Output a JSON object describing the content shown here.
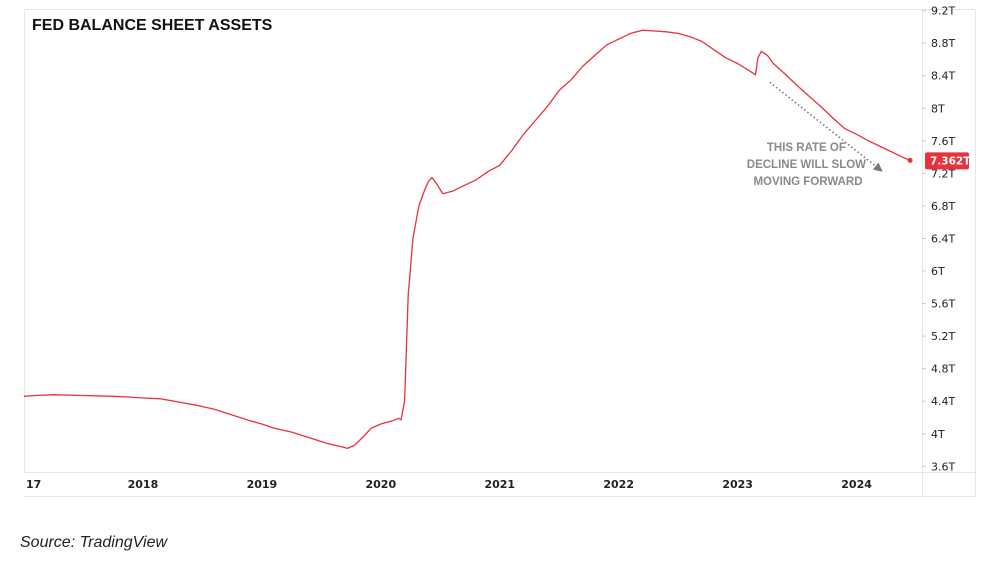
{
  "chart_data": {
    "type": "line",
    "title": "FED BALANCE SHEET ASSETS",
    "y_axis_position": "right",
    "y_ticks": [
      "9.2T",
      "8.8T",
      "8.4T",
      "8T",
      "7.6T",
      "7.2T",
      "6.8T",
      "6.4T",
      "6T",
      "5.6T",
      "5.2T",
      "4.8T",
      "4.4T",
      "4T",
      "3.6T"
    ],
    "y_tick_values": [
      9.2,
      8.8,
      8.4,
      8.0,
      7.6,
      7.2,
      6.8,
      6.4,
      6.0,
      5.6,
      5.2,
      4.8,
      4.4,
      4.0,
      3.6
    ],
    "x_ticks": [
      "17",
      "2018",
      "2019",
      "2020",
      "2021",
      "2022",
      "2023",
      "2024"
    ],
    "x_tick_values": [
      2017.0,
      2018.0,
      2019.0,
      2020.0,
      2021.0,
      2022.0,
      2023.0,
      2024.0
    ],
    "xlim": [
      2017.0,
      2024.55
    ],
    "ylim": [
      3.53,
      9.22
    ],
    "grid": false,
    "unit": "T",
    "series": [
      {
        "color": "#e8323c",
        "x": [
          2017.0,
          2017.1,
          2017.25,
          2017.5,
          2017.75,
          2017.9,
          2018.0,
          2018.15,
          2018.3,
          2018.45,
          2018.6,
          2018.75,
          2018.9,
          2019.0,
          2019.1,
          2019.25,
          2019.4,
          2019.55,
          2019.67,
          2019.72,
          2019.78,
          2019.85,
          2019.92,
          2020.0,
          2020.1,
          2020.15,
          2020.17,
          2020.2,
          2020.23,
          2020.27,
          2020.32,
          2020.37,
          2020.4,
          2020.43,
          2020.47,
          2020.52,
          2020.6,
          2020.7,
          2020.8,
          2020.9,
          2021.0,
          2021.1,
          2021.2,
          2021.3,
          2021.4,
          2021.5,
          2021.6,
          2021.7,
          2021.8,
          2021.9,
          2022.0,
          2022.1,
          2022.2,
          2022.3,
          2022.4,
          2022.5,
          2022.6,
          2022.7,
          2022.8,
          2022.9,
          2023.0,
          2023.1,
          2023.15,
          2023.17,
          2023.2,
          2023.25,
          2023.3,
          2023.4,
          2023.5,
          2023.6,
          2023.7,
          2023.8,
          2023.9,
          2024.0,
          2024.1,
          2024.2,
          2024.3,
          2024.4,
          2024.45
        ],
        "y": [
          4.46,
          4.47,
          4.48,
          4.47,
          4.46,
          4.45,
          4.44,
          4.43,
          4.39,
          4.35,
          4.3,
          4.23,
          4.16,
          4.12,
          4.07,
          4.02,
          3.95,
          3.88,
          3.84,
          3.82,
          3.86,
          3.96,
          4.07,
          4.12,
          4.16,
          4.19,
          4.17,
          4.4,
          5.7,
          6.4,
          6.8,
          7.0,
          7.1,
          7.15,
          7.07,
          6.95,
          6.98,
          7.05,
          7.12,
          7.22,
          7.3,
          7.48,
          7.68,
          7.85,
          8.02,
          8.22,
          8.35,
          8.52,
          8.65,
          8.78,
          8.85,
          8.92,
          8.96,
          8.95,
          8.94,
          8.92,
          8.88,
          8.82,
          8.72,
          8.62,
          8.55,
          8.46,
          8.41,
          8.62,
          8.7,
          8.65,
          8.55,
          8.42,
          8.28,
          8.15,
          8.02,
          7.88,
          7.75,
          7.68,
          7.6,
          7.53,
          7.46,
          7.39,
          7.36
        ]
      }
    ],
    "last_value_label": "7.362T",
    "annotation": {
      "lines": [
        "THIS RATE OF",
        "DECLINE WILL SLOW",
        "MOVING FORWARD"
      ],
      "arrow_from": [
        2023.27,
        8.32
      ],
      "arrow_to": [
        2024.22,
        7.22
      ]
    }
  },
  "source": "Source: TradingView"
}
